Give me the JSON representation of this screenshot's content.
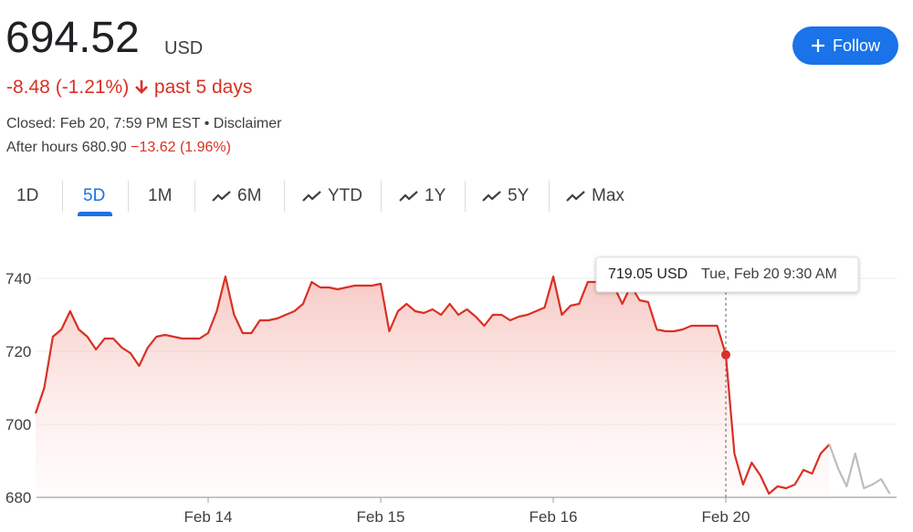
{
  "header": {
    "price": "694.52",
    "currency": "USD",
    "change": "-8.48 (-1.21%)",
    "period": "past 5 days",
    "closed": "Closed: Feb 20, 7:59 PM EST",
    "disclaimer": "Disclaimer",
    "after_hours_label": "After hours",
    "after_hours_price": "680.90",
    "after_hours_change": "−13.62 (1.96%)",
    "follow": "Follow"
  },
  "tabs": [
    "1D",
    "5D",
    "1M",
    "6M",
    "YTD",
    "1Y",
    "5Y",
    "Max"
  ],
  "selected_tab": "5D",
  "chart_data": {
    "type": "line",
    "categories": [
      null,
      null,
      null,
      null,
      null,
      null,
      null,
      null,
      null,
      null,
      null,
      null,
      null,
      null,
      null,
      null,
      null,
      null,
      null,
      null,
      "Feb 14",
      null,
      null,
      null,
      null,
      null,
      null,
      null,
      null,
      null,
      null,
      null,
      null,
      null,
      null,
      null,
      null,
      null,
      null,
      null,
      "Feb 15",
      null,
      null,
      null,
      null,
      null,
      null,
      null,
      null,
      null,
      null,
      null,
      null,
      null,
      null,
      null,
      null,
      null,
      null,
      null,
      "Feb 16",
      null,
      null,
      null,
      null,
      null,
      null,
      null,
      null,
      null,
      null,
      null,
      null,
      null,
      null,
      null,
      null,
      null,
      null,
      null,
      "Feb 20",
      null,
      null,
      null,
      null,
      null,
      null,
      null,
      null,
      null,
      null,
      null,
      null,
      null,
      null,
      null,
      null,
      null,
      null,
      null
    ],
    "series": [
      {
        "color": "#d93025",
        "values": [
          703,
          710,
          724,
          726,
          731,
          726,
          724,
          720.5,
          723.5,
          723.5,
          721,
          719.5,
          716,
          721,
          724,
          724.5,
          724,
          723.5,
          723.5,
          723.5,
          725,
          731,
          740.5,
          730,
          725,
          725,
          728.5,
          728.5,
          729,
          730,
          731,
          733,
          739,
          737.5,
          737.5,
          737,
          737.5,
          738,
          738,
          738,
          738.5,
          725.5,
          731,
          733,
          731,
          730.5,
          731.5,
          730,
          733,
          730,
          731.5,
          729.5,
          727,
          730,
          730,
          728.5,
          729.5,
          730,
          731,
          732,
          740.5,
          730,
          732.5,
          733,
          739,
          739,
          739,
          738,
          733,
          738,
          734,
          733.5,
          726,
          725.5,
          725.5,
          726,
          727,
          727,
          727,
          727,
          719.05,
          692,
          683.5,
          689.5,
          686,
          681,
          683,
          682.5,
          683.5,
          687.5,
          686.5,
          692,
          694.5,
          null,
          null,
          null,
          null,
          null,
          null,
          null
        ]
      },
      {
        "color": "#bdbdbd",
        "values": [
          null,
          null,
          null,
          null,
          null,
          null,
          null,
          null,
          null,
          null,
          null,
          null,
          null,
          null,
          null,
          null,
          null,
          null,
          null,
          null,
          null,
          null,
          null,
          null,
          null,
          null,
          null,
          null,
          null,
          null,
          null,
          null,
          null,
          null,
          null,
          null,
          null,
          null,
          null,
          null,
          null,
          null,
          null,
          null,
          null,
          null,
          null,
          null,
          null,
          null,
          null,
          null,
          null,
          null,
          null,
          null,
          null,
          null,
          null,
          null,
          null,
          null,
          null,
          null,
          null,
          null,
          null,
          null,
          null,
          null,
          null,
          null,
          null,
          null,
          null,
          null,
          null,
          null,
          null,
          null,
          null,
          null,
          null,
          null,
          null,
          null,
          null,
          null,
          null,
          null,
          null,
          null,
          694.5,
          688,
          683,
          692,
          682.5,
          683.5,
          685,
          681
        ]
      }
    ],
    "ylim": [
      680,
      750
    ],
    "yticks": [
      680,
      700,
      720,
      740
    ],
    "grid": true,
    "tooltip": {
      "index": 80,
      "price": "719.05 USD",
      "time": "Tue, Feb 20 9:30 AM"
    }
  }
}
